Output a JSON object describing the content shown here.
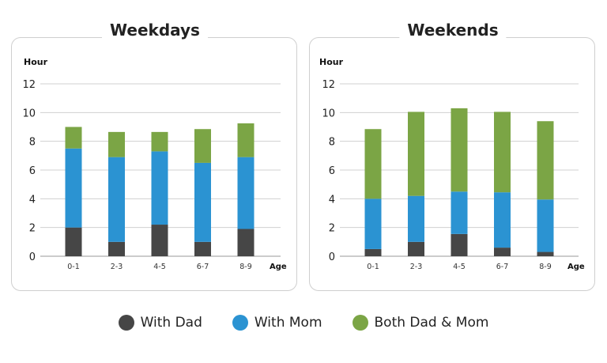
{
  "colors": {
    "dad": "#464646",
    "mom": "#2b93d2",
    "both": "#7ba545"
  },
  "legend": [
    {
      "key": "dad",
      "label": "With Dad"
    },
    {
      "key": "mom",
      "label": "With Mom"
    },
    {
      "key": "both",
      "label": "Both Dad & Mom"
    }
  ],
  "chart_data": [
    {
      "type": "bar",
      "stacked": true,
      "title": "Weekdays",
      "ylabel": "Hour",
      "xlabel": "Age",
      "ylim": [
        0,
        12
      ],
      "yticks": [
        0,
        2,
        4,
        6,
        8,
        10,
        12
      ],
      "grid": true,
      "categories": [
        "0-1",
        "2-3",
        "4-5",
        "6-7",
        "8-9"
      ],
      "series": [
        {
          "name": "With Dad",
          "values": [
            2.0,
            1.0,
            2.2,
            1.0,
            1.9
          ]
        },
        {
          "name": "With Mom",
          "values": [
            5.5,
            5.9,
            5.1,
            5.5,
            5.0
          ]
        },
        {
          "name": "Both Dad & Mom",
          "values": [
            1.5,
            1.75,
            1.35,
            2.35,
            2.35
          ]
        }
      ]
    },
    {
      "type": "bar",
      "stacked": true,
      "title": "Weekends",
      "ylabel": "Hour",
      "xlabel": "Age",
      "ylim": [
        0,
        12
      ],
      "yticks": [
        0,
        2,
        4,
        6,
        8,
        10,
        12
      ],
      "grid": true,
      "categories": [
        "0-1",
        "2-3",
        "4-5",
        "6-7",
        "8-9"
      ],
      "series": [
        {
          "name": "With Dad",
          "values": [
            0.5,
            1.0,
            1.55,
            0.6,
            0.3
          ]
        },
        {
          "name": "With Mom",
          "values": [
            3.5,
            3.2,
            2.95,
            3.85,
            3.65
          ]
        },
        {
          "name": "Both Dad & Mom",
          "values": [
            4.85,
            5.85,
            5.8,
            5.6,
            5.45
          ]
        }
      ]
    }
  ]
}
